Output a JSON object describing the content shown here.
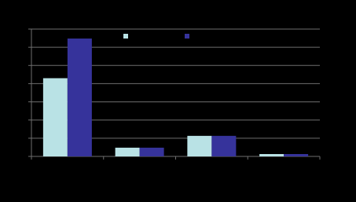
{
  "chart_data": {
    "type": "bar",
    "categories": [
      null,
      null,
      null,
      null
    ],
    "series": [
      {
        "color": "#b9e2e5",
        "values": [
          43,
          4.8,
          11.3,
          1.3
        ]
      },
      {
        "color": "#36339b",
        "values": [
          64.8,
          4.8,
          11.3,
          1.3
        ]
      }
    ],
    "ylim": [
      0,
      70
    ],
    "yticks": [
      0,
      10,
      20,
      30,
      40,
      50,
      60,
      70
    ],
    "grid": true
  }
}
